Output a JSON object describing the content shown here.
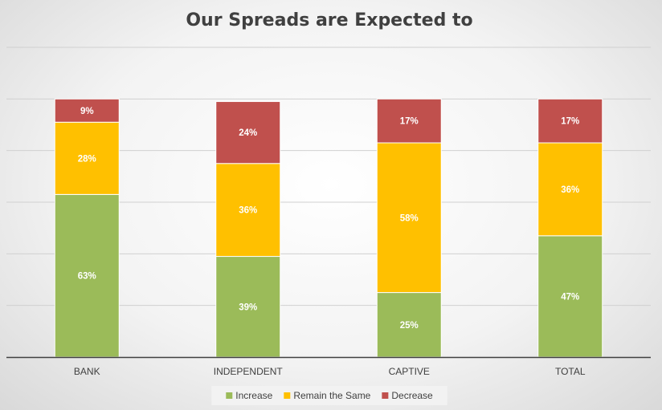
{
  "chart_data": {
    "type": "bar",
    "stacked": true,
    "title": "Our Spreads are Expected to",
    "xlabel": "",
    "ylabel": "",
    "ylim": [
      0,
      100
    ],
    "grid": true,
    "legend_position": "bottom",
    "categories": [
      "BANK",
      "INDEPENDENT",
      "CAPTIVE",
      "TOTAL"
    ],
    "series": [
      {
        "name": "Increase",
        "color": "#9BBB59",
        "values": [
          63,
          39,
          25,
          47
        ],
        "labels": [
          "63%",
          "39%",
          "25%",
          "47%"
        ]
      },
      {
        "name": "Remain the Same",
        "color": "#FFC000",
        "values": [
          28,
          36,
          58,
          36
        ],
        "labels": [
          "28%",
          "36%",
          "58%",
          "36%"
        ]
      },
      {
        "name": "Decrease",
        "color": "#C0504D",
        "values": [
          9,
          24,
          17,
          17
        ],
        "labels": [
          "9%",
          "24%",
          "17%",
          "17%"
        ]
      }
    ]
  }
}
